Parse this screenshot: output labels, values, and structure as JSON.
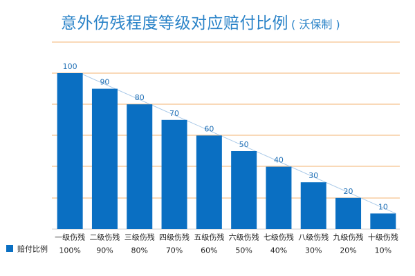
{
  "title": "意外伤残程度等级对应赔付比例",
  "subtitle": "( 沃保制 )",
  "colors": {
    "bar": "#0a6fc2",
    "title": "#2a83c8",
    "grid": "#f5c28e",
    "axis": "#cccccc",
    "trend": "#a9c9e8",
    "data_label": "#1f6fb5"
  },
  "chart_data": {
    "type": "bar",
    "title": "意外伤残程度等级对应赔付比例",
    "xlabel": "",
    "ylabel": "",
    "ylim": [
      0,
      100
    ],
    "grid": true,
    "categories": [
      "一级伤残",
      "二级伤残",
      "三级伤残",
      "四级伤残",
      "五级伤残",
      "六级伤残",
      "七级伤残",
      "八级伤残",
      "九级伤残",
      "十级伤残"
    ],
    "series": [
      {
        "name": "赔付比例",
        "values": [
          100,
          90,
          80,
          70,
          60,
          50,
          40,
          30,
          20,
          10
        ],
        "display": [
          "100%",
          "90%",
          "80%",
          "70%",
          "60%",
          "50%",
          "40%",
          "30%",
          "20%",
          "10%"
        ]
      }
    ],
    "data_labels": [
      "100",
      "90",
      "80",
      "70",
      "60",
      "50",
      "40",
      "30",
      "20",
      "10"
    ],
    "legend": "bottom-left"
  }
}
